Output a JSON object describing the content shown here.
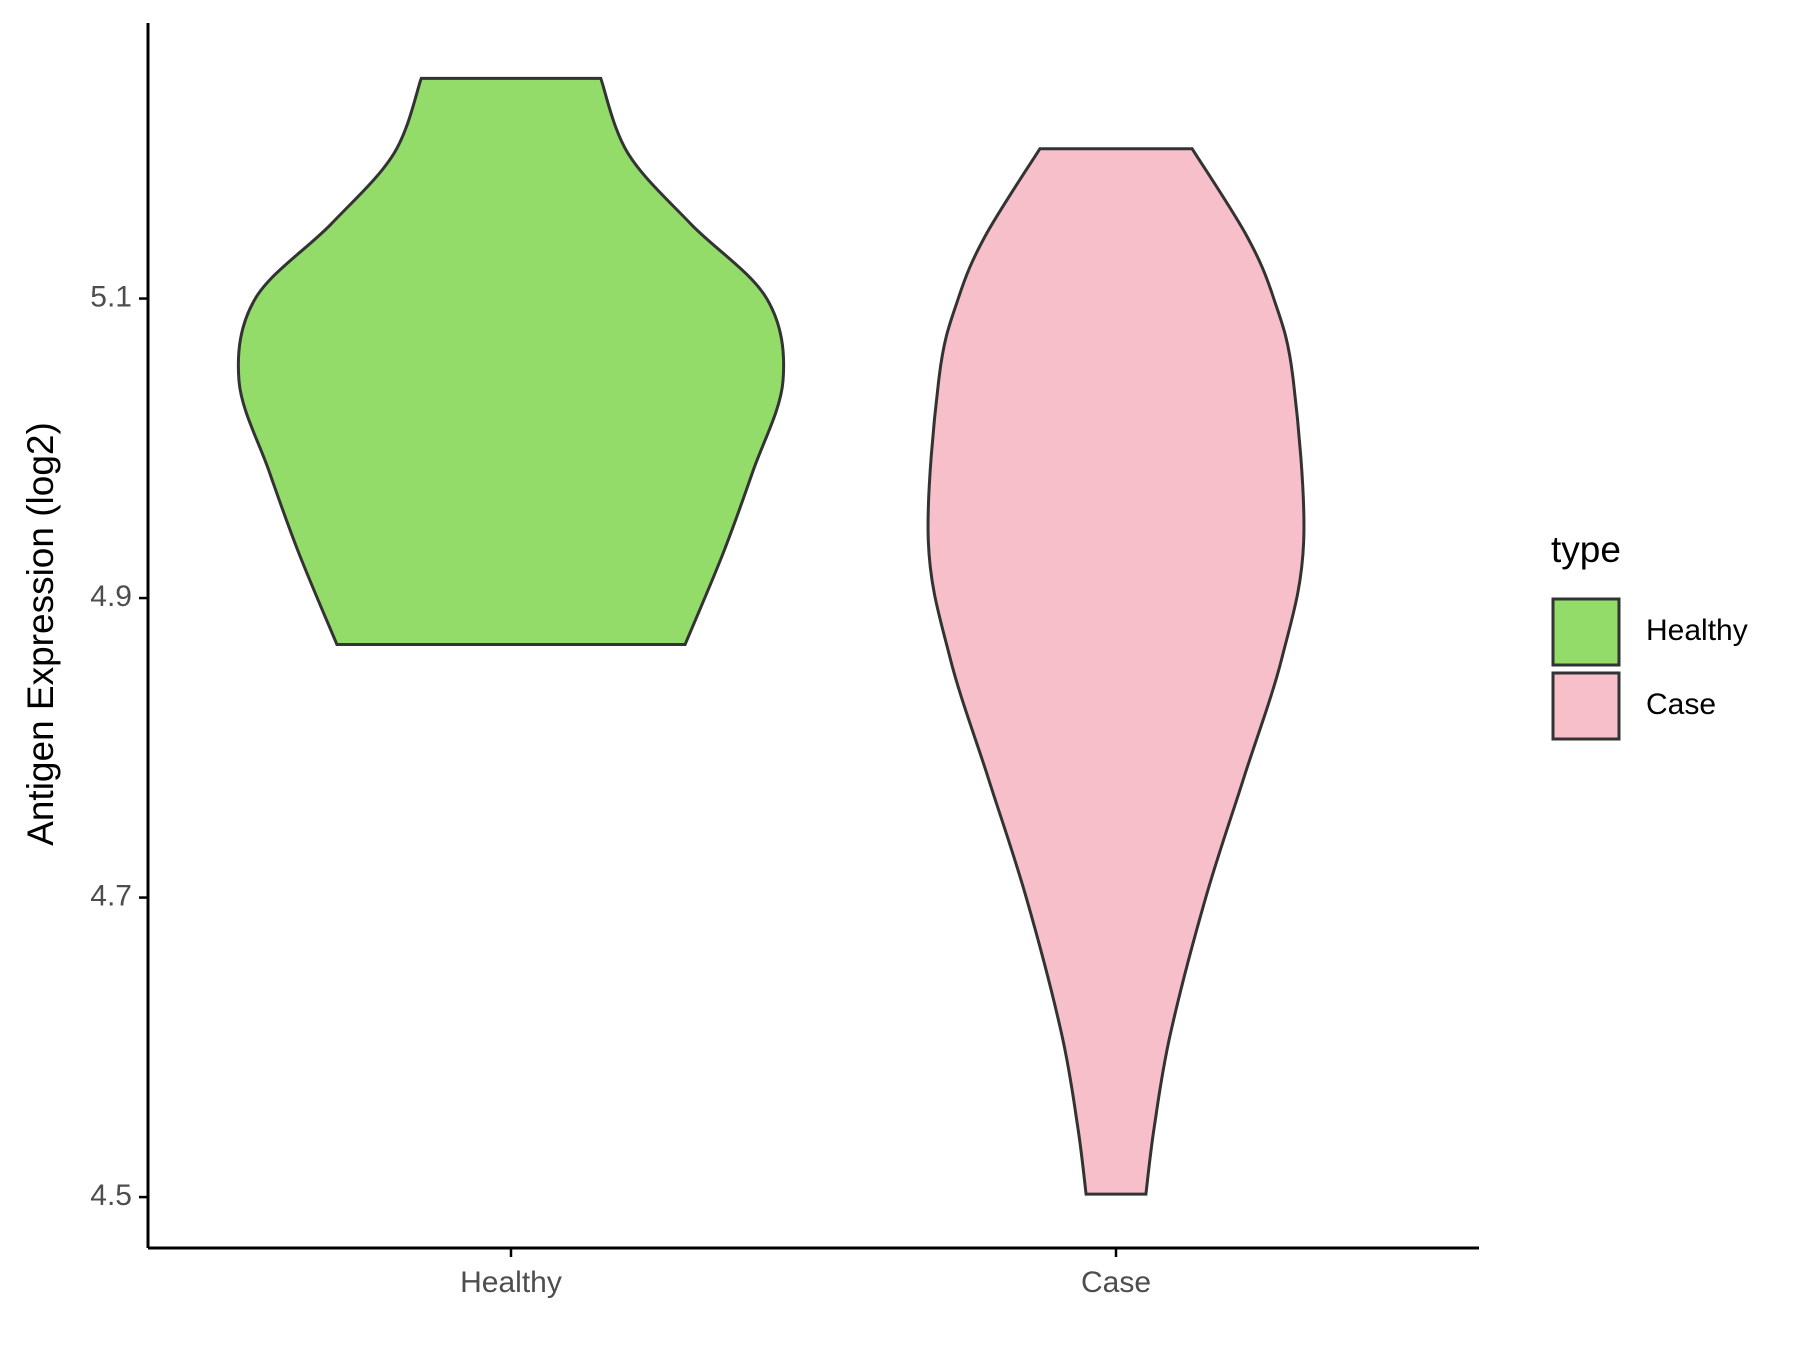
{
  "chart_data": {
    "type": "violin",
    "y_label": "Antigen Expression (log2)",
    "categories": [
      "Healthy",
      "Case"
    ],
    "ylim": [
      4.466,
      5.284
    ],
    "yticks": [
      4.5,
      4.7,
      4.9,
      5.1
    ],
    "legend_title": "type",
    "legend": "right",
    "series": [
      {
        "name": "Healthy",
        "color": "#93dc6a",
        "y": [
          5.247,
          5.197,
          5.15,
          5.1,
          5.045,
          4.985,
          4.93,
          4.869
        ],
        "widths": [
          0.33,
          0.43,
          0.66,
          0.94,
          1,
          0.89,
          0.78,
          0.64
        ]
      },
      {
        "name": "Case",
        "color": "#f7bfca",
        "y": [
          5.2,
          5.142,
          5.1,
          5.048,
          4.938,
          4.86,
          4.78,
          4.7,
          4.609,
          4.546,
          4.502
        ],
        "widths": [
          0.28,
          0.48,
          0.58,
          0.65,
          0.69,
          0.61,
          0.47,
          0.33,
          0.2,
          0.14,
          0.11
        ]
      }
    ]
  }
}
